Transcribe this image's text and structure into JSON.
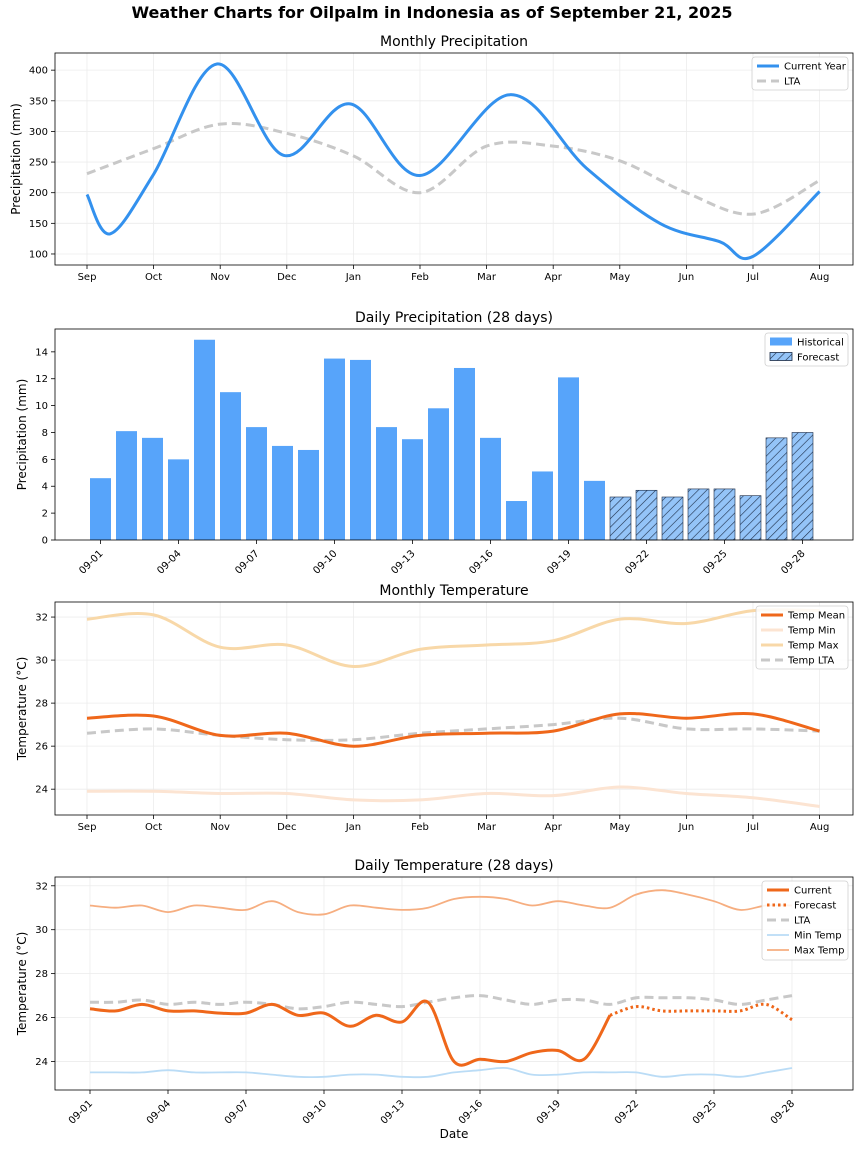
{
  "title": "Weather Charts for Oilpalm in Indonesia as of September 21, 2025",
  "colors": {
    "current": "#3391EE",
    "lta": "#C8C8C8",
    "hist_bar": "#57A4FA",
    "forecast_bar": "#94C4F8",
    "temp_mean": "#EF671A",
    "temp_min": "#FCE4D2",
    "temp_max": "#F8D8A8",
    "daily_current": "#EF671A",
    "daily_min": "#BADCF6",
    "daily_max": "#F6AE80"
  },
  "chart_data": [
    {
      "type": "line",
      "title": "Monthly Precipitation",
      "xlabel": "",
      "ylabel": "Precipitation (mm)",
      "categories": [
        "Sep",
        "Oct",
        "Nov",
        "Dec",
        "Jan",
        "Feb",
        "Mar",
        "Apr",
        "May",
        "Jun",
        "Jul",
        "Aug"
      ],
      "yticks": [
        100,
        150,
        200,
        250,
        300,
        350,
        400
      ],
      "ylim": [
        82,
        428
      ],
      "grid": true,
      "legend_position": "top-right",
      "series": [
        {
          "name": "Current Year",
          "style": "solid",
          "color": "#3391EE",
          "values": [
            197,
            133,
            410,
            261,
            345,
            228,
            358,
            301,
            180,
            138,
            96,
            202
          ],
          "x": [
            0,
            0.42,
            2,
            3,
            4,
            5,
            6,
            7,
            8,
            9,
            10,
            11
          ],
          "extra_points": [
            [
              0.35,
              133
            ],
            [
              1,
              230
            ],
            [
              1.95,
              410
            ],
            [
              2.95,
              261
            ],
            [
              3.95,
              345
            ],
            [
              5,
              228
            ],
            [
              6.35,
              360
            ],
            [
              7.5,
              240
            ],
            [
              8.6,
              150
            ],
            [
              9.5,
              120
            ],
            [
              10,
              96
            ]
          ]
        },
        {
          "name": "LTA",
          "style": "dashed",
          "color": "#C8C8C8",
          "values": [
            231,
            272,
            312,
            297,
            260,
            200,
            276,
            276,
            252,
            200,
            165,
            220
          ],
          "x": [
            0,
            1,
            2,
            3,
            4,
            5,
            6,
            7,
            8,
            9,
            10,
            11
          ]
        }
      ]
    },
    {
      "type": "bar",
      "title": "Daily Precipitation (28 days)",
      "xlabel": "",
      "ylabel": "Precipitation (mm)",
      "ylim": [
        0,
        15.7
      ],
      "yticks": [
        0,
        2,
        4,
        6,
        8,
        10,
        12,
        14
      ],
      "xticks": [
        "09-01",
        "09-04",
        "09-07",
        "09-10",
        "09-13",
        "09-16",
        "09-19",
        "09-22",
        "09-25",
        "09-28"
      ],
      "grid": false,
      "legend_position": "top-right",
      "legend": [
        "Historical",
        "Forecast"
      ],
      "days": [
        "09-01",
        "09-02",
        "09-03",
        "09-04",
        "09-05",
        "09-06",
        "09-07",
        "09-08",
        "09-09",
        "09-10",
        "09-11",
        "09-12",
        "09-13",
        "09-14",
        "09-15",
        "09-16",
        "09-17",
        "09-18",
        "09-19",
        "09-20",
        "09-21",
        "09-22",
        "09-23",
        "09-24",
        "09-25",
        "09-26",
        "09-27",
        "09-28"
      ],
      "values": [
        4.6,
        8.1,
        7.6,
        6.0,
        14.9,
        11.0,
        8.4,
        7.0,
        6.7,
        13.5,
        13.4,
        8.4,
        7.5,
        9.8,
        12.8,
        7.6,
        2.9,
        5.1,
        12.1,
        4.4,
        3.2,
        3.7,
        3.2,
        3.8,
        3.8,
        3.3,
        7.6,
        8.0
      ],
      "forecast_from_index": 20
    },
    {
      "type": "line",
      "title": "Monthly Temperature",
      "xlabel": "",
      "ylabel": "Temperature (°C)",
      "categories": [
        "Sep",
        "Oct",
        "Nov",
        "Dec",
        "Jan",
        "Feb",
        "Mar",
        "Apr",
        "May",
        "Jun",
        "Jul",
        "Aug"
      ],
      "yticks": [
        24,
        26,
        28,
        30,
        32
      ],
      "ylim": [
        22.8,
        32.7
      ],
      "grid": true,
      "legend_position": "top-right",
      "series": [
        {
          "name": "Temp Mean",
          "style": "solid",
          "color": "#EF671A",
          "values": [
            27.3,
            27.4,
            26.5,
            26.6,
            26.0,
            26.5,
            26.6,
            26.7,
            27.5,
            27.3,
            27.5,
            26.7
          ]
        },
        {
          "name": "Temp Min",
          "style": "solid",
          "color": "#FCE4D2",
          "values": [
            23.9,
            23.9,
            23.8,
            23.8,
            23.5,
            23.5,
            23.8,
            23.7,
            24.1,
            23.8,
            23.6,
            23.2
          ]
        },
        {
          "name": "Temp Max",
          "style": "solid",
          "color": "#F8D8A8",
          "values": [
            31.9,
            32.1,
            30.6,
            30.7,
            29.7,
            30.5,
            30.7,
            30.9,
            31.9,
            31.7,
            32.3,
            32.3
          ]
        },
        {
          "name": "Temp LTA",
          "style": "dashed",
          "color": "#C8C8C8",
          "values": [
            26.6,
            26.8,
            26.5,
            26.3,
            26.3,
            26.6,
            26.8,
            27.0,
            27.3,
            26.8,
            26.8,
            26.7
          ]
        }
      ]
    },
    {
      "type": "line",
      "title": "Daily Temperature (28 days)",
      "xlabel": "Date",
      "ylabel": "Temperature (°C)",
      "yticks": [
        24,
        26,
        28,
        30,
        32
      ],
      "ylim": [
        22.7,
        32.4
      ],
      "xticks": [
        "09-01",
        "09-04",
        "09-07",
        "09-10",
        "09-13",
        "09-16",
        "09-19",
        "09-22",
        "09-25",
        "09-28"
      ],
      "grid": true,
      "legend_position": "top-right",
      "series": [
        {
          "name": "Current",
          "style": "solid",
          "color": "#EF671A",
          "values": [
            26.4,
            26.3,
            26.6,
            26.3,
            26.3,
            26.2,
            26.2,
            26.6,
            26.1,
            26.2,
            25.6,
            26.1,
            25.8,
            26.7,
            24.0,
            24.1,
            24.0,
            24.4,
            24.5,
            24.1,
            26.1
          ]
        },
        {
          "name": "Forecast",
          "style": "dotted",
          "color": "#EF671A",
          "start_index": 20,
          "values": [
            26.1,
            26.5,
            26.3,
            26.3,
            26.3,
            26.3,
            26.6,
            25.9
          ]
        },
        {
          "name": "LTA",
          "style": "dashed",
          "color": "#C8C8C8",
          "values": [
            26.7,
            26.7,
            26.8,
            26.6,
            26.7,
            26.6,
            26.7,
            26.6,
            26.4,
            26.5,
            26.7,
            26.6,
            26.5,
            26.7,
            26.9,
            27.0,
            26.8,
            26.6,
            26.8,
            26.8,
            26.6,
            26.9,
            26.9,
            26.9,
            26.8,
            26.6,
            26.8,
            27.0
          ]
        },
        {
          "name": "Min Temp",
          "style": "solid",
          "color": "#BADCF6",
          "values": [
            23.5,
            23.5,
            23.5,
            23.6,
            23.5,
            23.5,
            23.5,
            23.4,
            23.3,
            23.3,
            23.4,
            23.4,
            23.3,
            23.3,
            23.5,
            23.6,
            23.7,
            23.4,
            23.4,
            23.5,
            23.5,
            23.5,
            23.3,
            23.4,
            23.4,
            23.3,
            23.5,
            23.7
          ]
        },
        {
          "name": "Max Temp",
          "style": "solid",
          "color": "#F6AE80",
          "values": [
            31.1,
            31.0,
            31.1,
            30.8,
            31.1,
            31.0,
            30.9,
            31.3,
            30.8,
            30.7,
            31.1,
            31.0,
            30.9,
            31.0,
            31.4,
            31.5,
            31.4,
            31.1,
            31.3,
            31.1,
            31.0,
            31.6,
            31.8,
            31.6,
            31.3,
            30.9,
            31.1,
            31.1
          ]
        }
      ]
    }
  ]
}
